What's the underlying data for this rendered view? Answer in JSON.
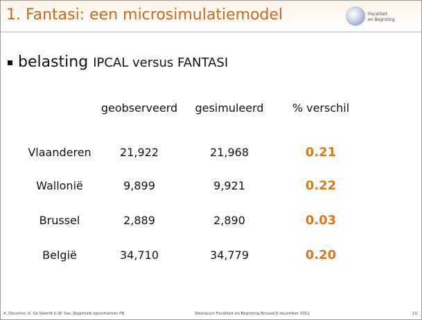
{
  "header": {
    "title": "1. Fantasi: een microsimulatiemodel",
    "logo": [
      "Fiscaliteit",
      "en Begroting"
    ]
  },
  "bullet": {
    "lead": "belasting",
    "rest": "IPCAL versus FANTASI"
  },
  "table": {
    "columns": [
      "geobserveerd",
      "gesimuleerd",
      "% verschil"
    ],
    "rows": [
      [
        "Vlaanderen",
        "21,922",
        "21,968",
        "0.21"
      ],
      [
        "Wallonië",
        "9,899",
        "9,921",
        "0.22"
      ],
      [
        "Brussel",
        "2,889",
        "2,890",
        "0.03"
      ],
      [
        "België",
        "34,710",
        "34,779",
        "0.20"
      ]
    ]
  },
  "footer": {
    "left": "A. Decoster, K. De Swerdt & W. Sas: Regionale opcentiemen PB",
    "center": "Steunpunt Fiscaliteit en Begroting Brussel 6 december 2012",
    "page": "10"
  }
}
